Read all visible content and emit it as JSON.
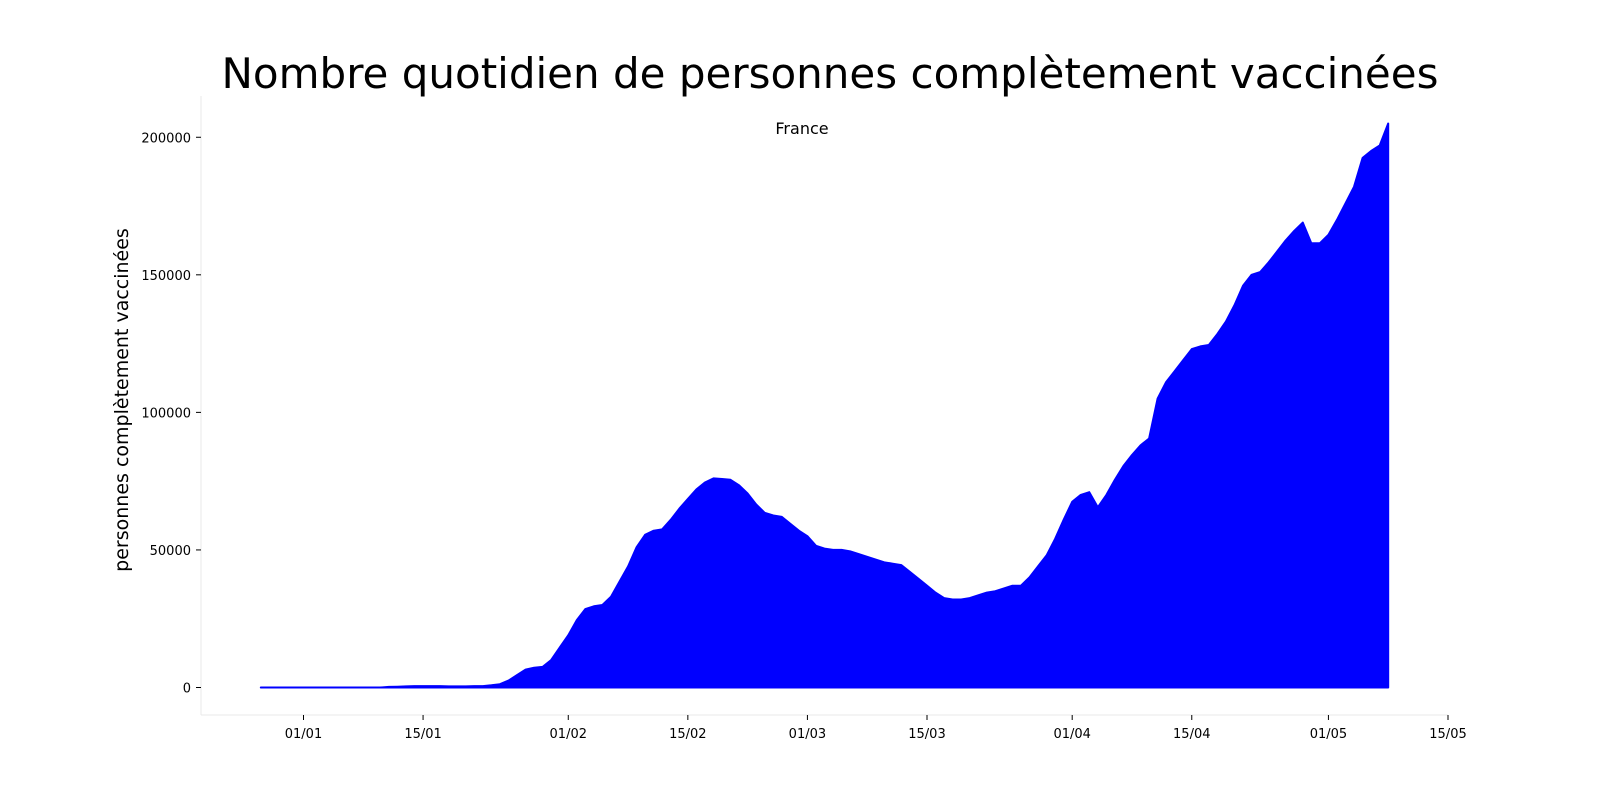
{
  "chart_data": {
    "type": "area",
    "title": "Nombre quotidien de personnes complètement vaccinées",
    "subtitle": "France",
    "xlabel": "",
    "ylabel": "personnes complètement vaccinées",
    "color": "#0000ff",
    "x_start": "2020-12-27",
    "x_end": "2021-05-09",
    "xlim": [
      "2020-12-20",
      "2021-05-15"
    ],
    "ylim": [
      -10000,
      215000
    ],
    "x_ticks": [
      {
        "date": "2021-01-01",
        "label": "01/01"
      },
      {
        "date": "2021-01-15",
        "label": "15/01"
      },
      {
        "date": "2021-02-01",
        "label": "01/02"
      },
      {
        "date": "2021-02-15",
        "label": "15/02"
      },
      {
        "date": "2021-03-01",
        "label": "01/03"
      },
      {
        "date": "2021-03-15",
        "label": "15/03"
      },
      {
        "date": "2021-04-01",
        "label": "01/04"
      },
      {
        "date": "2021-04-15",
        "label": "15/04"
      },
      {
        "date": "2021-05-01",
        "label": "01/05"
      },
      {
        "date": "2021-05-15",
        "label": "15/05"
      }
    ],
    "y_ticks": [
      {
        "value": 0,
        "label": "0"
      },
      {
        "value": 50000,
        "label": "50000"
      },
      {
        "value": 100000,
        "label": "100000"
      },
      {
        "value": 150000,
        "label": "150000"
      },
      {
        "value": 200000,
        "label": "200000"
      }
    ],
    "grid": false,
    "legend": "none",
    "values": [
      0,
      0,
      0,
      0,
      0,
      0,
      0,
      0,
      0,
      0,
      0,
      0,
      0,
      0,
      0,
      200,
      300,
      400,
      500,
      500,
      500,
      500,
      400,
      400,
      400,
      500,
      500,
      800,
      1200,
      2500,
      4500,
      6500,
      7200,
      7500,
      10000,
      14500,
      19000,
      24500,
      28500,
      29500,
      30000,
      33000,
      38500,
      44000,
      51000,
      55500,
      57000,
      57500,
      61000,
      65000,
      68500,
      72000,
      74500,
      76000,
      75800,
      75500,
      73500,
      70500,
      66500,
      63500,
      62500,
      62000,
      59500,
      57000,
      55000,
      51500,
      50500,
      50000,
      50000,
      49500,
      48500,
      47500,
      46500,
      45500,
      45000,
      44500,
      42000,
      39500,
      37000,
      34500,
      32500,
      32000,
      32000,
      32500,
      33500,
      34500,
      35000,
      36000,
      37000,
      37000,
      40000,
      44000,
      48000,
      54000,
      61000,
      67500,
      70000,
      71000,
      65500,
      70000,
      75500,
      80500,
      84500,
      88000,
      90500,
      105000,
      111000,
      115000,
      119000,
      123000,
      124000,
      124500,
      128500,
      133000,
      139000,
      146000,
      150000,
      151000,
      154500,
      158500,
      162500,
      166000,
      169000,
      161500,
      161500,
      164500,
      170000,
      176000,
      182000,
      192500,
      195000,
      197000,
      205000
    ]
  }
}
